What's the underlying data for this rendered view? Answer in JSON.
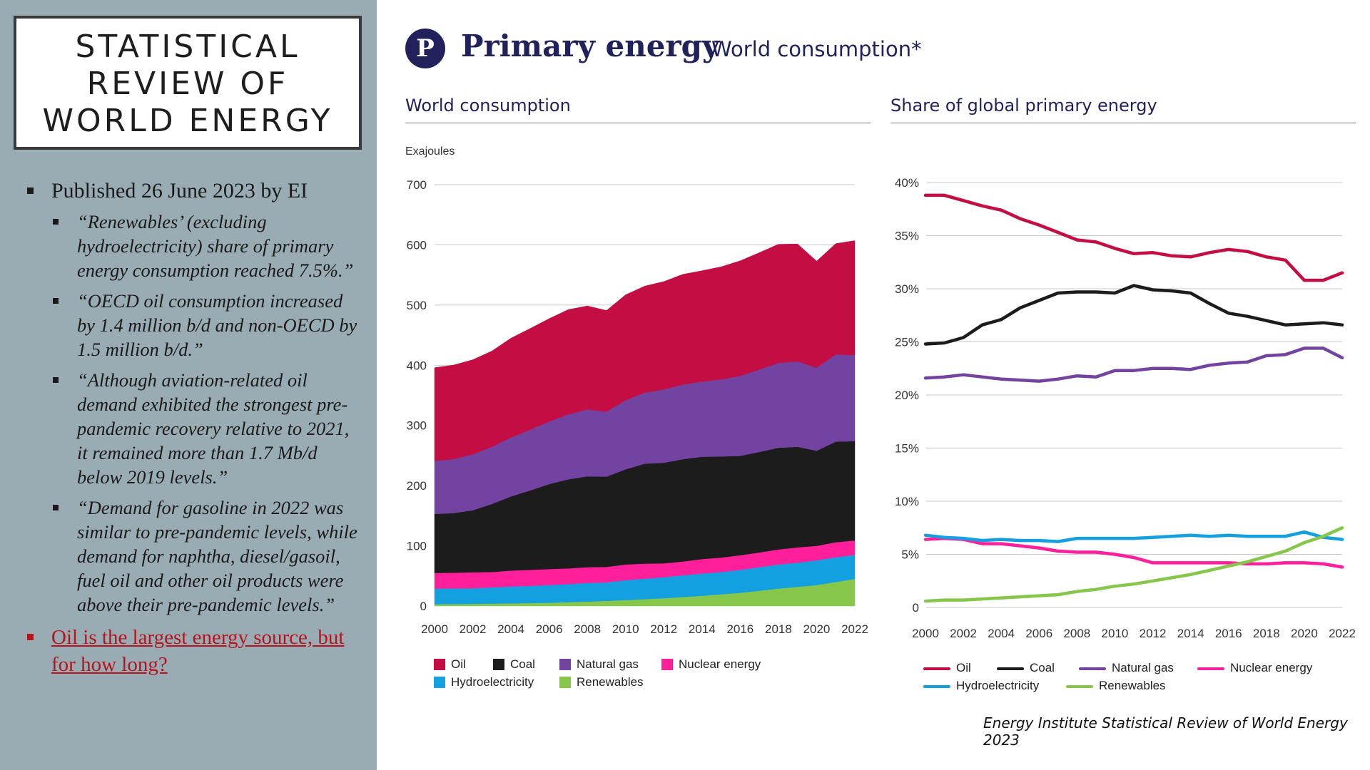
{
  "slide": {
    "title_lines": [
      "STATISTICAL",
      "REVIEW OF",
      "WORLD ENERGY"
    ],
    "bullets": {
      "published": "Published 26 June 2023 by EI",
      "quotes": [
        "“Renewables’ (excluding hydroelectricity) share of primary energy consumption reached 7.5%.”",
        "“OECD oil consumption increased by 1.4 million b/d and non-OECD by 1.5 million b/d.”",
        "“Although aviation-related oil demand exhibited the strongest pre-pandemic recovery relative to 2021, it remained more than 1.7 Mb/d below 2019 levels.”",
        "“Demand for gasoline in 2022 was similar to pre-pandemic levels, while demand for naphtha, diesel/gasoil, fuel oil and other oil products were above their pre-pandemic levels.”"
      ],
      "highlight_link": "Oil is the largest energy source, but for how long?"
    }
  },
  "header": {
    "icon_letter": "P",
    "title": "Primary energy",
    "subtitle": "World consumption*"
  },
  "footer": "Energy Institute Statistical Review of World Energy 2023",
  "colors": {
    "oil": "#c40d42",
    "coal": "#1c1c1c",
    "natural_gas": "#7243a0",
    "nuclear": "#ff1f9b",
    "hydro": "#12a0e0",
    "renewables": "#86c64a",
    "brand_navy": "#21225b",
    "link_red": "#b5141c"
  },
  "chart_data": [
    {
      "type": "area",
      "title": "World consumption",
      "ylabel": "Exajoules",
      "x": [
        2000,
        2001,
        2002,
        2003,
        2004,
        2005,
        2006,
        2007,
        2008,
        2009,
        2010,
        2011,
        2012,
        2013,
        2014,
        2015,
        2016,
        2017,
        2018,
        2019,
        2020,
        2021,
        2022
      ],
      "x_ticks": [
        "2000",
        "2002",
        "2004",
        "2006",
        "2008",
        "2010",
        "2012",
        "2014",
        "2016",
        "2018",
        "2020",
        "2022"
      ],
      "y_ticks": [
        "0",
        "100",
        "200",
        "300",
        "400",
        "500",
        "600",
        "700"
      ],
      "ylim": [
        0,
        700
      ],
      "stacked": true,
      "series": [
        {
          "name": "Renewables",
          "key": "renewables",
          "values": [
            3,
            3.3,
            3.6,
            4,
            4.5,
            5,
            5.5,
            6.5,
            7.5,
            8.5,
            10,
            11.5,
            13,
            15,
            17,
            19.5,
            22,
            25.5,
            29,
            32,
            35,
            40,
            45
          ]
        },
        {
          "name": "Hydroelectricity",
          "key": "hydro",
          "values": [
            26,
            26,
            26,
            27,
            28,
            28.5,
            29.5,
            30,
            31,
            31,
            33,
            34,
            35,
            36,
            37,
            37,
            38,
            39,
            40,
            40,
            41,
            41,
            40
          ]
        },
        {
          "name": "Nuclear energy",
          "key": "nuclear",
          "values": [
            26,
            26,
            26.5,
            25.5,
            26.5,
            26.5,
            26.5,
            26,
            26,
            25.5,
            26,
            25,
            23,
            23,
            24,
            24,
            24.5,
            24.5,
            25,
            25.5,
            24,
            25,
            24
          ]
        },
        {
          "name": "Coal",
          "key": "coal",
          "values": [
            98,
            99,
            103,
            113,
            123,
            132,
            141,
            148,
            151,
            150,
            158,
            166,
            167,
            170,
            170,
            168,
            165,
            167,
            169,
            167,
            158,
            167,
            165
          ]
        },
        {
          "name": "Natural gas",
          "key": "natural_gas",
          "values": [
            88,
            90,
            93,
            95,
            98,
            101,
            104,
            108,
            111,
            108,
            115,
            118,
            122,
            124,
            125,
            128,
            133,
            137,
            141,
            142,
            138,
            145,
            143
          ]
        },
        {
          "name": "Oil",
          "key": "oil",
          "values": [
            155,
            156,
            157,
            159,
            165,
            168,
            171,
            174,
            172,
            168,
            175,
            177,
            179,
            183,
            184,
            187,
            191,
            194,
            197,
            195,
            177,
            184,
            190
          ]
        }
      ],
      "legend": [
        "Oil",
        "Coal",
        "Natural gas",
        "Nuclear energy",
        "Hydroelectricity",
        "Renewables"
      ],
      "legend_position": "bottom",
      "grid": true
    },
    {
      "type": "line",
      "title": "Share of global primary energy",
      "x": [
        2000,
        2001,
        2002,
        2003,
        2004,
        2005,
        2006,
        2007,
        2008,
        2009,
        2010,
        2011,
        2012,
        2013,
        2014,
        2015,
        2016,
        2017,
        2018,
        2019,
        2020,
        2021,
        2022
      ],
      "x_ticks": [
        "2000",
        "2002",
        "2004",
        "2006",
        "2008",
        "2010",
        "2012",
        "2014",
        "2016",
        "2018",
        "2020",
        "2022"
      ],
      "y_ticks": [
        "0",
        "5%",
        "10%",
        "15%",
        "20%",
        "25%",
        "30%",
        "35%",
        "40%"
      ],
      "ylim": [
        0,
        40
      ],
      "series": [
        {
          "name": "Oil",
          "key": "oil",
          "values": [
            38.8,
            38.8,
            38.3,
            37.8,
            37.4,
            36.6,
            36.0,
            35.3,
            34.6,
            34.4,
            33.8,
            33.3,
            33.4,
            33.1,
            33.0,
            33.4,
            33.7,
            33.5,
            33.0,
            32.7,
            30.8,
            30.8,
            31.5
          ]
        },
        {
          "name": "Coal",
          "key": "coal",
          "values": [
            24.8,
            24.9,
            25.4,
            26.6,
            27.1,
            28.2,
            28.9,
            29.6,
            29.7,
            29.7,
            29.6,
            30.3,
            29.9,
            29.8,
            29.6,
            28.6,
            27.7,
            27.4,
            27.0,
            26.6,
            26.7,
            26.8,
            26.6
          ]
        },
        {
          "name": "Natural gas",
          "key": "natural_gas",
          "values": [
            21.6,
            21.7,
            21.9,
            21.7,
            21.5,
            21.4,
            21.3,
            21.5,
            21.8,
            21.7,
            22.3,
            22.3,
            22.5,
            22.5,
            22.4,
            22.8,
            23.0,
            23.1,
            23.7,
            23.8,
            24.4,
            24.4,
            23.5
          ]
        },
        {
          "name": "Nuclear energy",
          "key": "nuclear",
          "values": [
            6.4,
            6.5,
            6.4,
            6.0,
            6.0,
            5.8,
            5.6,
            5.3,
            5.2,
            5.2,
            5.0,
            4.7,
            4.2,
            4.2,
            4.2,
            4.2,
            4.2,
            4.1,
            4.1,
            4.2,
            4.2,
            4.1,
            3.8
          ]
        },
        {
          "name": "Hydroelectricity",
          "key": "hydro",
          "values": [
            6.8,
            6.6,
            6.5,
            6.3,
            6.4,
            6.3,
            6.3,
            6.2,
            6.5,
            6.5,
            6.5,
            6.5,
            6.6,
            6.7,
            6.8,
            6.7,
            6.8,
            6.7,
            6.7,
            6.7,
            7.1,
            6.6,
            6.4
          ]
        },
        {
          "name": "Renewables",
          "key": "renewables",
          "values": [
            0.6,
            0.7,
            0.7,
            0.8,
            0.9,
            1.0,
            1.1,
            1.2,
            1.5,
            1.7,
            2.0,
            2.2,
            2.5,
            2.8,
            3.1,
            3.5,
            3.9,
            4.3,
            4.8,
            5.3,
            6.1,
            6.7,
            7.5
          ]
        }
      ],
      "legend": [
        "Oil",
        "Coal",
        "Natural gas",
        "Nuclear energy",
        "Hydroelectricity",
        "Renewables"
      ],
      "legend_position": "bottom",
      "grid": true
    }
  ]
}
